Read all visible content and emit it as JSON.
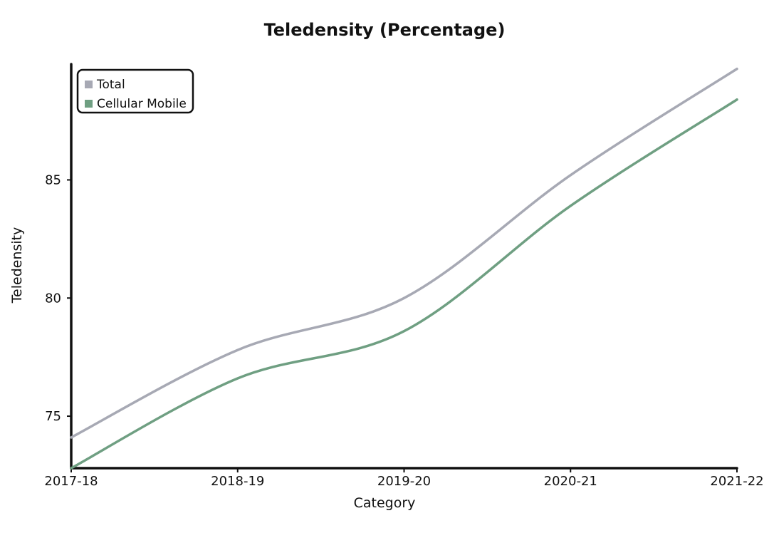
{
  "chart_data": {
    "type": "line",
    "title": "Teledensity (Percentage)",
    "xlabel": "Category",
    "ylabel": "Teledensity",
    "categories": [
      "2017-18",
      "2018-19",
      "2019-20",
      "2020-21",
      "2021-22"
    ],
    "series": [
      {
        "name": "Total",
        "color": "#a7a9b4",
        "values": [
          74.1,
          77.8,
          80.0,
          85.2,
          89.7
        ]
      },
      {
        "name": "Cellular Mobile",
        "color": "#6f9f82",
        "values": [
          72.8,
          76.6,
          78.6,
          83.9,
          88.4
        ]
      }
    ],
    "y_ticks": [
      75,
      80,
      85
    ],
    "ylim": [
      72.8,
      89.9
    ],
    "grid": false,
    "legend_position": "top-left"
  }
}
